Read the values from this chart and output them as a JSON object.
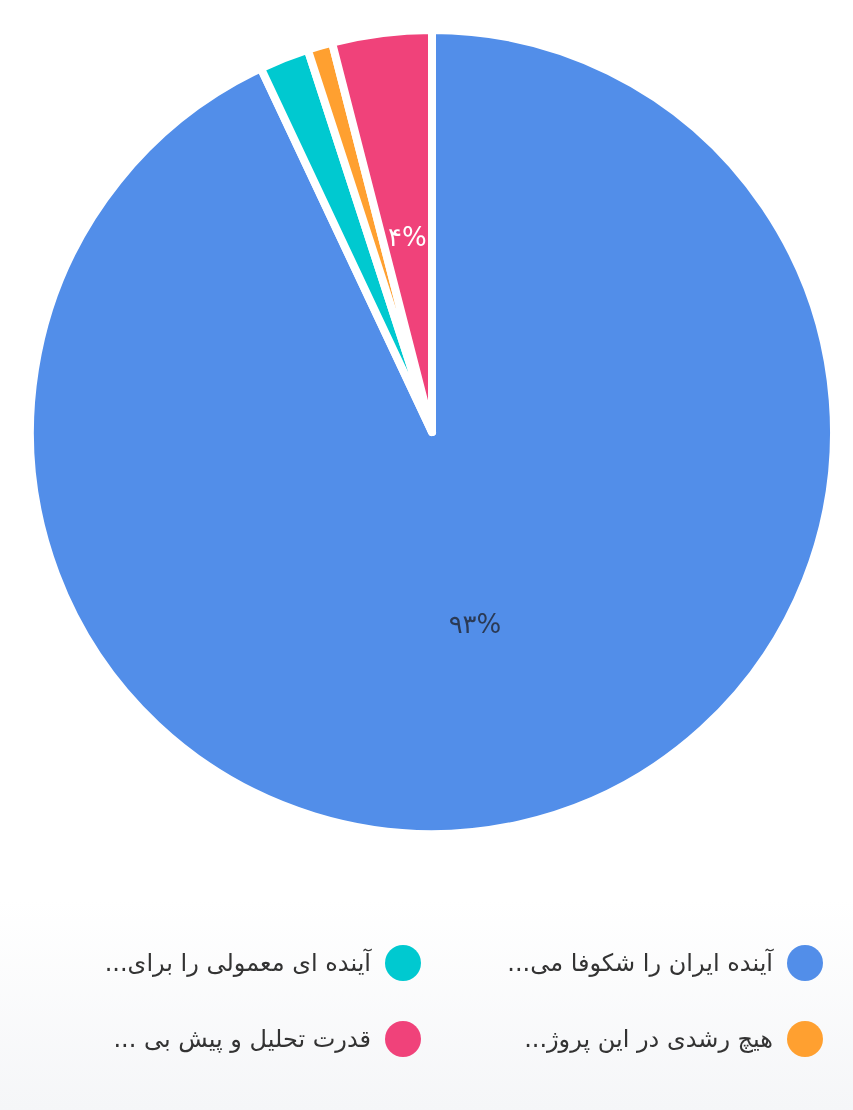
{
  "chart_data": {
    "type": "pie",
    "categories": [
      "آینده ایران را شکوفا می...",
      "آینده ای معمولی را برای...",
      "هیچ رشدی در این پروژ...",
      "قدرت تحلیل و پیش بی ..."
    ],
    "values": [
      93,
      2,
      1,
      4
    ],
    "colors": [
      "#528ee9",
      "#00c9d0",
      "#ffa030",
      "#f0427a"
    ],
    "value_labels": [
      "۹۳%",
      null,
      null,
      "۴%"
    ],
    "legend": "bottom"
  }
}
